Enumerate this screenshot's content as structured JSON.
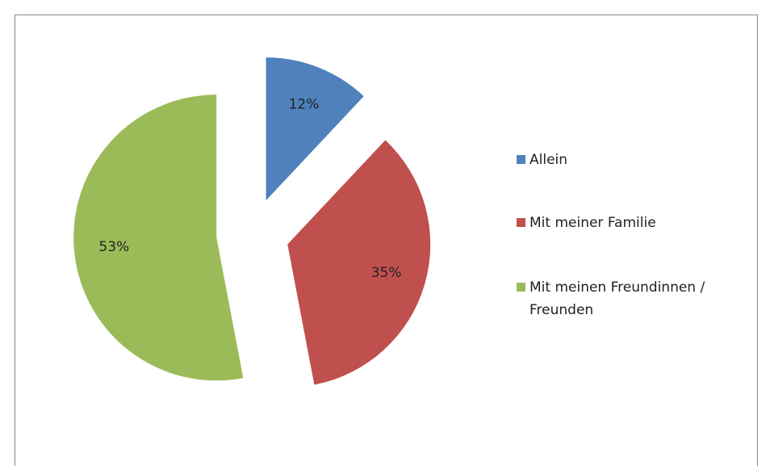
{
  "chart_data": {
    "type": "pie",
    "categories": [
      "Allein",
      "Mit meiner Familie",
      "Mit meinen Freundinnen / Freunden"
    ],
    "values": [
      12,
      35,
      53
    ],
    "value_labels": [
      "12%",
      "35%",
      "53%"
    ],
    "colors": [
      "#4f81bd",
      "#c0504d",
      "#9bbb59"
    ],
    "exploded": true,
    "legend": "right"
  }
}
